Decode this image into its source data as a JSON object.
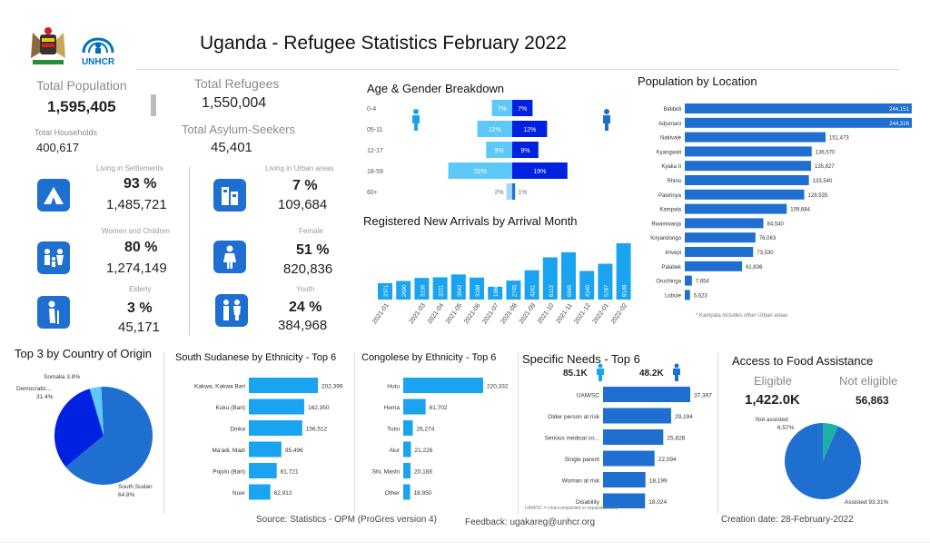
{
  "header": {
    "title": "Uganda  - Refugee Statistics February 2022",
    "unhcr_logo_text": "UNHCR"
  },
  "totals": {
    "population_label": "Total Population",
    "population_value": "1,595,405",
    "refugees_label": "Total Refugees",
    "refugees_value": "1,550,004",
    "households_label": "Total Households",
    "households_value": "400,617",
    "asylum_label": "Total Asylum-Seekers",
    "asylum_value": "45,401"
  },
  "kpis": [
    {
      "label": "Living in Settlements",
      "pct": "93 %",
      "value": "1,485,721",
      "icon": "tent-icon"
    },
    {
      "label": "Living in Urban areas",
      "pct": "7 %",
      "value": "109,684",
      "icon": "building-icon"
    },
    {
      "label": "Women and Children",
      "pct": "80 %",
      "value": "1,274,149",
      "icon": "family-icon"
    },
    {
      "label": "Female",
      "pct": "51 %",
      "value": "820,836",
      "icon": "female-icon"
    },
    {
      "label": "Elderly",
      "pct": "3 %",
      "value": "45,171",
      "icon": "elderly-icon"
    },
    {
      "label": "Youth",
      "pct": "24 %",
      "value": "384,968",
      "icon": "youth-icon"
    }
  ],
  "colors": {
    "dark": "#0022e0",
    "mid": "#1f6fd1",
    "bright": "#1aa3f0",
    "light": "#5ec8f6",
    "teal": "#1fb0a4"
  },
  "chart_data": [
    {
      "id": "age_gender",
      "type": "bar",
      "title": "Age & Gender Breakdown",
      "categories": [
        "0-4",
        "05-11",
        "12-17",
        "18-59",
        "60+"
      ],
      "series": [
        {
          "values": [
            7,
            12,
            9,
            22,
            2
          ],
          "labels": [
            "7%",
            "12%",
            "9%",
            "22%",
            "2%"
          ]
        },
        {
          "values": [
            7,
            12,
            9,
            19,
            1
          ],
          "labels": [
            "7%",
            "12%",
            "9%",
            "19%",
            "1%"
          ]
        }
      ]
    },
    {
      "id": "arrivals",
      "type": "bar",
      "title": "Registered New Arrivals by Arrival Month",
      "categories": [
        "2021-01",
        "2021-02",
        "2021-03",
        "2021-04",
        "2021-05",
        "2021-06",
        "2021-07",
        "2021-08",
        "2021-09",
        "2021-10",
        "2021-11",
        "2021-12",
        "2022-01",
        "2022-02"
      ],
      "tick_labels": [
        "2021-01",
        "2021-03",
        "2021-04",
        "2021-05",
        "2021-06",
        "2021-07",
        "2021-08",
        "2021-09",
        "2021-10",
        "2021-11",
        "2021-12",
        "2022-01",
        "2022-02"
      ],
      "values": [
        2371,
        2690,
        3136,
        3221,
        3642,
        3188,
        1860,
        2745,
        4241,
        6113,
        6845,
        4140,
        5187,
        8148
      ],
      "value_labels": [
        "2371",
        "2690",
        "3136",
        "3221",
        "3642",
        "3188",
        "1860",
        "2745",
        "4241",
        "6113",
        "6845",
        "4140",
        "5187",
        "8148"
      ]
    },
    {
      "id": "location",
      "type": "bar",
      "title": "Population by Location",
      "categories": [
        "Bidibidi",
        "Adjumani",
        "Nakivale",
        "Kyangwali",
        "Kyaka II",
        "Rhino",
        "Palorinya",
        "Kampala",
        "Rwamwanja",
        "Kiryandongo",
        "Imvepi",
        "Palabek",
        "Oruchinga",
        "Lobule"
      ],
      "values": [
        244151,
        244316,
        151473,
        136570,
        135827,
        133540,
        128535,
        109684,
        84540,
        76063,
        73530,
        61636,
        7654,
        5623
      ],
      "value_labels": [
        "244,151",
        "244,316",
        "151,473",
        "136,570",
        "135,827",
        "133,540",
        "128,535",
        "109,684",
        "84,540",
        "76,063",
        "73,530",
        "61,636",
        "7,654",
        "5,623"
      ],
      "note": "* Kampala includes other Urban areas"
    },
    {
      "id": "origin",
      "type": "pie",
      "title": "Top 3 by Country of Origin",
      "categories": [
        "South Sudan",
        "Democratic...",
        "Somalia"
      ],
      "values": [
        64.8,
        31.4,
        3.8
      ],
      "labels": [
        "South Sudan 64.8%",
        "Democratic... 31.4%",
        "Somalia 3.8%"
      ]
    },
    {
      "id": "ss_ethnicity",
      "type": "bar",
      "title": "South Sudanese by Ethnicity - Top 6",
      "categories": [
        "Kakwa, Kakwa Bari",
        "Kuku (Bari)",
        "Dinka",
        "Ma'adi, Madi",
        "Pojulu (Bari)",
        "Nuer"
      ],
      "values": [
        202399,
        162350,
        156512,
        95496,
        81721,
        62912
      ],
      "value_labels": [
        "202,399",
        "162,350",
        "156,512",
        "95,496",
        "81,721",
        "62,912"
      ]
    },
    {
      "id": "cd_ethnicity",
      "type": "bar",
      "title": "Congolese by Ethnicity - Top 6",
      "categories": [
        "Hutu",
        "Hema",
        "Tutsi",
        "Alur",
        "Shi, Mashi",
        "Other"
      ],
      "values": [
        220332,
        61702,
        26274,
        21226,
        20168,
        18950
      ],
      "value_labels": [
        "220,332",
        "61,702",
        "26,274",
        "21,226",
        "20,168",
        "18,950"
      ]
    },
    {
      "id": "needs",
      "type": "bar",
      "title": "Specific Needs - Top 6",
      "categories": [
        "UAM/SC",
        "Older person at risk",
        "Serious medical co...",
        "Single parent",
        "Woman at risk",
        "Disability"
      ],
      "values": [
        37397,
        29194,
        25828,
        22094,
        18199,
        18024
      ],
      "value_labels": [
        "37,397",
        "29,194",
        "25,828",
        "22,094",
        "18,199",
        "18,024"
      ],
      "note": "UAM/SC = Unaccompanied or separated child"
    },
    {
      "id": "food",
      "type": "pie",
      "title": "Access to Food Assistance",
      "categories": [
        "Assisted",
        "Not assisted"
      ],
      "values": [
        93.31,
        6.57
      ],
      "labels": [
        "Assisted 93.31%",
        "Not assisted 6.57%"
      ]
    }
  ],
  "needs_gender": {
    "male": "85.1K",
    "female": "48.2K"
  },
  "food": {
    "eligible_label": "Eligible",
    "eligible_value": "1,422.0K",
    "not_eligible_label": "Not eligible",
    "not_eligible_value": "56,863"
  },
  "footer": {
    "source": "Source: Statistics - OPM (ProGres version 4)",
    "feedback": "Feedback: ugakareg@unhcr.org",
    "created": "Creation date: 28-February-2022"
  }
}
